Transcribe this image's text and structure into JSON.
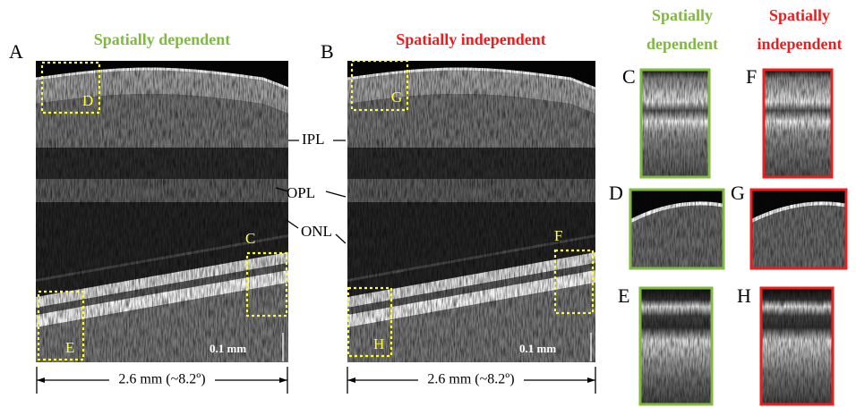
{
  "main_panels": [
    {
      "label": "A",
      "title": "Spatially dependent",
      "boxes": [
        "D",
        "C",
        "E"
      ],
      "scale_bar": "0.1 mm",
      "extent": "2.6 mm (~8.2º)"
    },
    {
      "label": "B",
      "title": "Spatially independent",
      "boxes": [
        "G",
        "F",
        "H"
      ],
      "scale_bar": "0.1 mm",
      "extent": "2.6 mm (~8.2º)"
    }
  ],
  "layer_labels": [
    "IPL",
    "OPL",
    "ONL"
  ],
  "crop_columns": [
    {
      "title": [
        "Spatially",
        "dependent"
      ],
      "crops": [
        "C",
        "D",
        "E"
      ]
    },
    {
      "title": [
        "Spatially",
        "independent"
      ],
      "crops": [
        "F",
        "G",
        "H"
      ]
    }
  ]
}
